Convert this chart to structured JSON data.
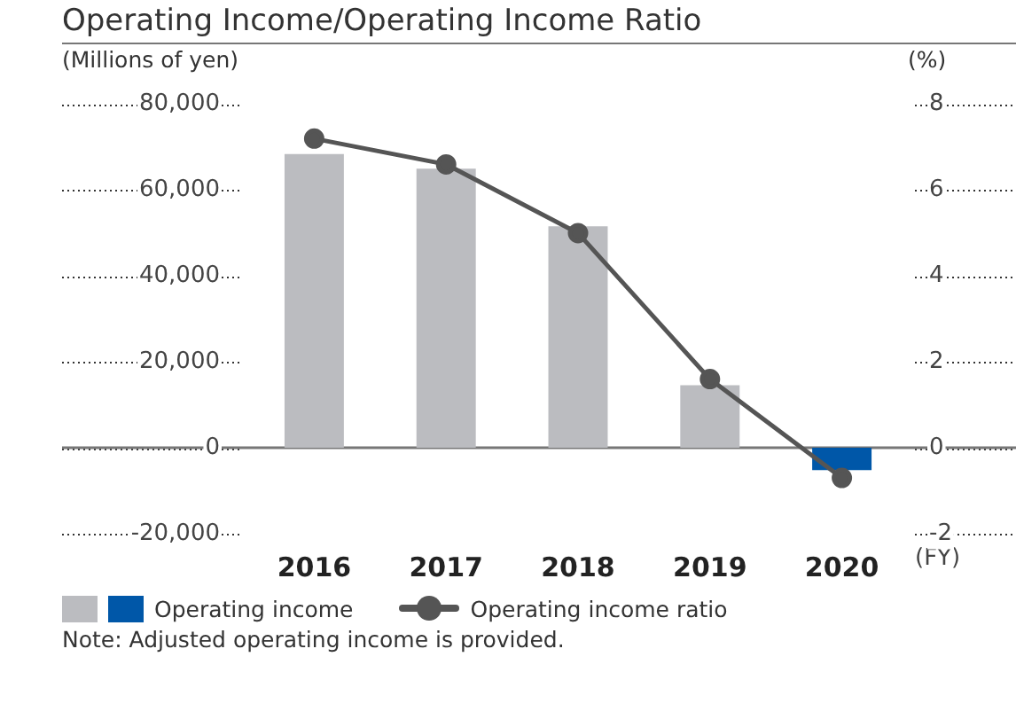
{
  "chart_data": {
    "type": "bar",
    "title": "Operating Income/Operating Income Ratio",
    "ylabel": "(Millions of yen)",
    "y2label": "(%)",
    "xlabel": "(FY)",
    "categories": [
      "2016",
      "2017",
      "2018",
      "2019",
      "2020"
    ],
    "series": [
      {
        "name": "Operating income",
        "colors": [
          "#bbbcc0",
          "#bbbcc0",
          "#bbbcc0",
          "#bbbcc0",
          "#0057a8"
        ],
        "values": [
          68400,
          65000,
          51600,
          14600,
          -5200
        ]
      },
      {
        "name": "Operating income ratio",
        "type": "line",
        "axis": "y2",
        "color": "#555555",
        "values": [
          7.2,
          6.6,
          5.0,
          1.6,
          -0.7
        ]
      }
    ],
    "ylim": [
      -20000,
      80000
    ],
    "yticks": [
      {
        "value": -20000,
        "label": "-20,000"
      },
      {
        "value": 0,
        "label": "0"
      },
      {
        "value": 20000,
        "label": "20,000"
      },
      {
        "value": 40000,
        "label": "40,000"
      },
      {
        "value": 60000,
        "label": "60,000"
      },
      {
        "value": 80000,
        "label": "80,000"
      }
    ],
    "y2lim": [
      -2,
      8
    ],
    "y2ticks": [
      -2,
      0,
      2,
      4,
      6,
      8
    ],
    "grid": "y",
    "legend": "bottom left",
    "marker": "circle",
    "line_style": "solid",
    "annotations": [
      "Note: Adjusted operating income is provided."
    ]
  }
}
